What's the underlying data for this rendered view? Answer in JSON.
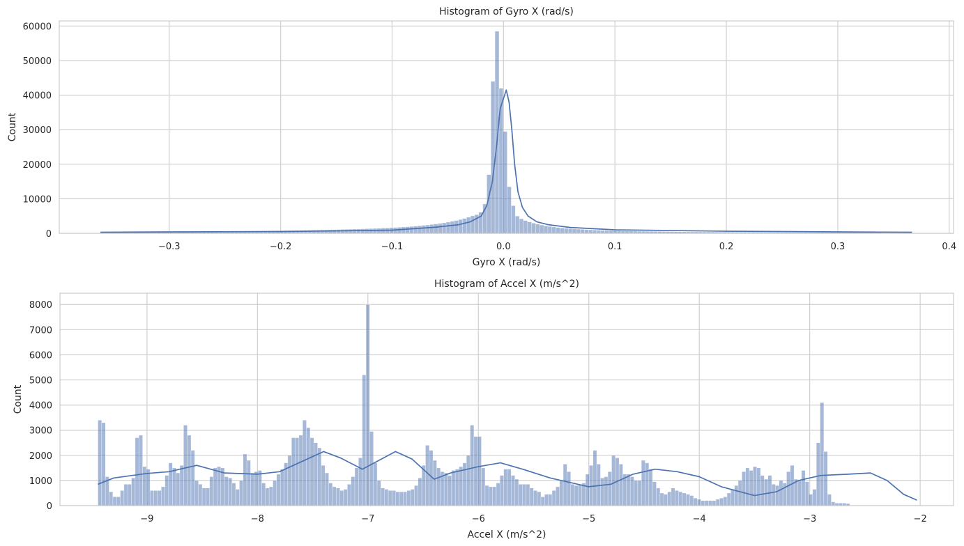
{
  "colors": {
    "bar": "#4c72b0",
    "line": "#4c72b0",
    "grid": "#cfcfcf",
    "spine": "#cccccc",
    "background": "#ffffff"
  },
  "chart_data": [
    {
      "type": "bar",
      "title": "Histogram of Gyro X (rad/s)",
      "xlabel": "Gyro X (rad/s)",
      "ylabel": "Count",
      "xlim": [
        -0.3987,
        0.4039
      ],
      "ylim": [
        0,
        61500
      ],
      "xticks": [
        -0.3,
        -0.2,
        -0.1,
        0.0,
        0.1,
        0.2,
        0.3,
        0.4
      ],
      "xtick_labels": [
        "−0.3",
        "−0.2",
        "−0.1",
        "0.0",
        "0.1",
        "0.2",
        "0.3",
        "0.4"
      ],
      "yticks": [
        0,
        10000,
        20000,
        30000,
        40000,
        50000,
        60000
      ],
      "ytick_labels": [
        "0",
        "10000",
        "20000",
        "30000",
        "40000",
        "50000",
        "60000"
      ],
      "grid": true,
      "x_start": -0.3617,
      "bin_width": 0.00365,
      "values": [
        300,
        310,
        320,
        320,
        330,
        340,
        350,
        360,
        370,
        380,
        380,
        390,
        400,
        410,
        420,
        430,
        440,
        450,
        460,
        470,
        480,
        490,
        500,
        510,
        520,
        530,
        540,
        550,
        560,
        570,
        590,
        600,
        610,
        620,
        640,
        650,
        660,
        680,
        690,
        700,
        720,
        730,
        750,
        770,
        780,
        800,
        820,
        840,
        860,
        880,
        900,
        920,
        940,
        960,
        990,
        1010,
        1040,
        1060,
        1090,
        1120,
        1150,
        1180,
        1210,
        1250,
        1290,
        1330,
        1370,
        1410,
        1460,
        1510,
        1560,
        1620,
        1680,
        1750,
        1820,
        1900,
        1990,
        2080,
        2190,
        2300,
        2420,
        2560,
        2700,
        2860,
        3040,
        3240,
        3460,
        3710,
        3990,
        4300,
        4660,
        5060,
        5400,
        6100,
        8500,
        17000,
        44000,
        58500,
        42000,
        29500,
        13500,
        8000,
        5000,
        4200,
        3700,
        3300,
        2950,
        2650,
        2400,
        2180,
        1990,
        1820,
        1680,
        1560,
        1450,
        1360,
        1270,
        1200,
        1130,
        1070,
        1010,
        960,
        910,
        870,
        830,
        790,
        760,
        730,
        700,
        670,
        650,
        630,
        600,
        580,
        570,
        550,
        530,
        520,
        500,
        490,
        480,
        460,
        450,
        440,
        430,
        420,
        410,
        400,
        390,
        390,
        380,
        370,
        360,
        360,
        350,
        340,
        340,
        330,
        330,
        320,
        320,
        310,
        310,
        300,
        300,
        290,
        290,
        280,
        280,
        270,
        270,
        270,
        260,
        260,
        260,
        250,
        250,
        250,
        240,
        240,
        240,
        240,
        230,
        230,
        230,
        230,
        220,
        220,
        220,
        220,
        210,
        210
      ],
      "kde": [
        [
          -0.3617,
          300
        ],
        [
          -0.3,
          400
        ],
        [
          -0.2,
          500
        ],
        [
          -0.1,
          900
        ],
        [
          -0.06,
          1800
        ],
        [
          -0.04,
          2500
        ],
        [
          -0.03,
          3300
        ],
        [
          -0.02,
          5000
        ],
        [
          -0.015,
          8000
        ],
        [
          -0.01,
          15000
        ],
        [
          -0.006,
          26000
        ],
        [
          -0.003,
          36000
        ],
        [
          0.0,
          39000
        ],
        [
          0.0025,
          41500
        ],
        [
          0.005,
          38000
        ],
        [
          0.0075,
          30000
        ],
        [
          0.01,
          20000
        ],
        [
          0.013,
          12000
        ],
        [
          0.017,
          7500
        ],
        [
          0.022,
          5000
        ],
        [
          0.03,
          3300
        ],
        [
          0.04,
          2500
        ],
        [
          0.06,
          1700
        ],
        [
          0.1,
          1000
        ],
        [
          0.2,
          600
        ],
        [
          0.3,
          400
        ],
        [
          0.3666,
          300
        ]
      ]
    },
    {
      "type": "bar",
      "title": "Histogram of Accel X (m/s^2)",
      "xlabel": "Accel X (m/s^2)",
      "ylabel": "Count",
      "xlim": [
        -9.788,
        -1.698
      ],
      "ylim": [
        0,
        8450
      ],
      "xticks": [
        -9,
        -8,
        -7,
        -6,
        -5,
        -4,
        -3,
        -2
      ],
      "xtick_labels": [
        "−9",
        "−8",
        "−7",
        "−6",
        "−5",
        "−4",
        "−3",
        "−2"
      ],
      "yticks": [
        0,
        1000,
        2000,
        3000,
        4000,
        5000,
        6000,
        7000,
        8000
      ],
      "ytick_labels": [
        "0",
        "1000",
        "2000",
        "3000",
        "4000",
        "5000",
        "6000",
        "7000",
        "8000"
      ],
      "grid": true,
      "x_start": -9.444,
      "bin_width": 0.0337,
      "values": [
        3400,
        3300,
        1150,
        550,
        350,
        350,
        600,
        850,
        850,
        1100,
        2700,
        2800,
        1550,
        1450,
        600,
        600,
        600,
        750,
        1200,
        1700,
        1500,
        1300,
        1600,
        3200,
        2800,
        2200,
        1000,
        850,
        700,
        700,
        1150,
        1500,
        1550,
        1500,
        1150,
        1100,
        900,
        650,
        1000,
        2050,
        1800,
        1300,
        1350,
        1400,
        900,
        700,
        750,
        1000,
        1250,
        1450,
        1700,
        2000,
        2700,
        2700,
        2800,
        3400,
        3100,
        2700,
        2500,
        2300,
        1600,
        1300,
        900,
        750,
        700,
        600,
        650,
        850,
        1150,
        1500,
        1900,
        5200,
        8000,
        2950,
        1700,
        1000,
        700,
        650,
        600,
        600,
        550,
        550,
        550,
        600,
        650,
        800,
        1100,
        1600,
        2400,
        2200,
        1800,
        1500,
        1350,
        1300,
        1200,
        1400,
        1450,
        1550,
        1700,
        2000,
        3200,
        2750,
        2750,
        1500,
        800,
        750,
        750,
        900,
        1200,
        1450,
        1450,
        1200,
        1050,
        850,
        850,
        850,
        700,
        600,
        550,
        350,
        450,
        450,
        600,
        750,
        1000,
        1650,
        1350,
        850,
        800,
        850,
        900,
        1250,
        1600,
        2200,
        1650,
        1100,
        1150,
        1350,
        2000,
        1900,
        1650,
        1250,
        1250,
        1150,
        1000,
        1000,
        1800,
        1700,
        1450,
        950,
        700,
        500,
        450,
        550,
        700,
        600,
        550,
        500,
        450,
        400,
        300,
        250,
        200,
        200,
        200,
        200,
        250,
        300,
        350,
        500,
        650,
        800,
        1000,
        1350,
        1500,
        1400,
        1550,
        1500,
        1200,
        1050,
        1200,
        850,
        800,
        1000,
        900,
        1350,
        1600,
        1050,
        1000,
        1400,
        950,
        450,
        650,
        2500,
        4100,
        2150,
        450,
        150,
        100,
        100,
        100,
        80
      ],
      "kde": [
        [
          -9.444,
          850
        ],
        [
          -9.3,
          1100
        ],
        [
          -9.0,
          1280
        ],
        [
          -8.8,
          1350
        ],
        [
          -8.55,
          1600
        ],
        [
          -8.3,
          1300
        ],
        [
          -8.0,
          1250
        ],
        [
          -7.8,
          1350
        ],
        [
          -7.6,
          1750
        ],
        [
          -7.4,
          2150
        ],
        [
          -7.25,
          1900
        ],
        [
          -7.05,
          1450
        ],
        [
          -6.9,
          1800
        ],
        [
          -6.75,
          2150
        ],
        [
          -6.6,
          1850
        ],
        [
          -6.4,
          1050
        ],
        [
          -6.25,
          1300
        ],
        [
          -6.0,
          1550
        ],
        [
          -5.8,
          1700
        ],
        [
          -5.6,
          1450
        ],
        [
          -5.35,
          1100
        ],
        [
          -5.0,
          750
        ],
        [
          -4.8,
          850
        ],
        [
          -4.6,
          1250
        ],
        [
          -4.4,
          1450
        ],
        [
          -4.2,
          1350
        ],
        [
          -4.0,
          1150
        ],
        [
          -3.8,
          750
        ],
        [
          -3.5,
          400
        ],
        [
          -3.3,
          550
        ],
        [
          -3.1,
          1000
        ],
        [
          -2.9,
          1200
        ],
        [
          -2.65,
          1250
        ],
        [
          -2.45,
          1300
        ],
        [
          -2.3,
          1000
        ],
        [
          -2.15,
          450
        ],
        [
          -2.03,
          220
        ]
      ]
    }
  ]
}
